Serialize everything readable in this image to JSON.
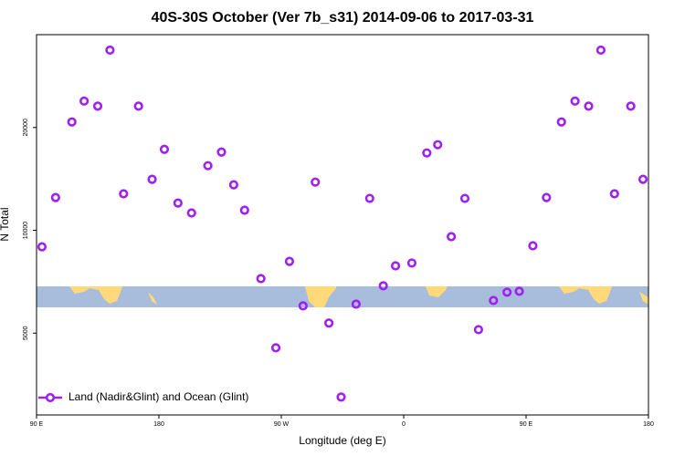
{
  "chart_data": {
    "type": "scatter",
    "title": "40S-30S October (Ver 7b_s31)   2014-09-06 to 2017-03-31",
    "x_label": "Longitude (deg E)",
    "y_label": "N Total",
    "xlim": [
      90,
      540
    ],
    "xticks": [
      {
        "value": 90,
        "label": "90 E"
      },
      180,
      {
        "value": 270,
        "label": "90 W"
      },
      {
        "value": 360,
        "label": "0"
      },
      {
        "value": 450,
        "label": "90 E"
      },
      {
        "value": 540,
        "label": "180"
      }
    ],
    "ylim": [
      2880,
      37400
    ],
    "y_log": true,
    "yticks": [
      5000,
      10000,
      20000
    ],
    "legend_position": "lower left",
    "series": [
      {
        "name": "Land (Nadir&Glint) and Ocean (Glint)",
        "color": "#a020f0",
        "x": [
          94,
          104,
          116,
          125,
          135,
          144,
          154,
          165,
          175,
          184,
          194,
          204,
          216,
          226,
          235,
          243,
          255,
          266,
          276,
          286,
          295,
          305,
          314,
          325,
          335,
          345,
          354,
          366,
          377,
          385,
          395,
          405,
          415,
          426,
          436,
          445,
          455,
          465,
          476,
          486,
          496,
          505,
          515,
          527,
          536
        ],
        "values": [
          8950,
          12470,
          20760,
          23900,
          23100,
          33700,
          12790,
          23100,
          14100,
          17260,
          12020,
          11240,
          15460,
          16950,
          13590,
          11450,
          7220,
          4530,
          8110,
          6010,
          13840,
          5350,
          3250,
          6080,
          12400,
          6880,
          7870,
          8020,
          16850,
          17810,
          9580,
          12400,
          5120,
          6230,
          6590,
          6630,
          9010,
          12470,
          20760,
          23900,
          23100,
          33700,
          12790,
          23100,
          14100
        ]
      }
    ]
  }
}
